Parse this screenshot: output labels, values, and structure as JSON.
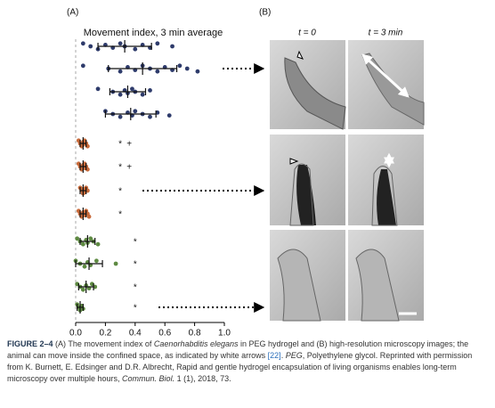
{
  "panel_a_label": "(A)",
  "panel_b_label": "(B)",
  "panel_b_columns": [
    "t = 0",
    "t = 3 min"
  ],
  "chart_data": {
    "type": "strip",
    "title": "Movement index, 3 min average",
    "xlim": [
      0,
      1
    ],
    "xticks": [
      {
        "value": 0,
        "label": "0.0"
      },
      {
        "value": 0.2,
        "label": "0.2"
      },
      {
        "value": 0.4,
        "label": "0.4"
      },
      {
        "value": 0.6,
        "label": "0.6"
      },
      {
        "value": 0.8,
        "label": "0.8"
      },
      {
        "value": 1,
        "label": "1.0"
      }
    ],
    "series": [
      {
        "color": "#2e3b6b",
        "values": [
          0.05,
          0.1,
          0.15,
          0.2,
          0.25,
          0.3,
          0.33,
          0.4,
          0.45,
          0.5,
          0.55,
          0.65
        ],
        "mean": 0.33,
        "sd": 0.18,
        "annotations": []
      },
      {
        "color": "#2e3b6b",
        "values": [
          0.05,
          0.22,
          0.3,
          0.35,
          0.4,
          0.45,
          0.5,
          0.55,
          0.6,
          0.65,
          0.7,
          0.75,
          0.82
        ],
        "mean": 0.45,
        "sd": 0.23,
        "annotations": []
      },
      {
        "color": "#2e3b6b",
        "values": [
          0.15,
          0.25,
          0.3,
          0.33,
          0.35,
          0.38,
          0.4,
          0.45,
          0.5
        ],
        "mean": 0.35,
        "sd": 0.12,
        "annotations": []
      },
      {
        "color": "#2e3b6b",
        "values": [
          0.2,
          0.25,
          0.3,
          0.35,
          0.38,
          0.4,
          0.45,
          0.5,
          0.55,
          0.63
        ],
        "mean": 0.37,
        "sd": 0.17,
        "annotations": []
      },
      {
        "color": "#c86a3a",
        "values": [
          0.02,
          0.03,
          0.04,
          0.05,
          0.05,
          0.06,
          0.07,
          0.08
        ],
        "mean": 0.05,
        "sd": 0.02,
        "annotations": [
          {
            "text": "*",
            "x": 0.3
          },
          {
            "text": "+",
            "x": 0.36
          }
        ]
      },
      {
        "color": "#c86a3a",
        "values": [
          0.02,
          0.03,
          0.04,
          0.05,
          0.06,
          0.06,
          0.07,
          0.08
        ],
        "mean": 0.05,
        "sd": 0.02,
        "annotations": [
          {
            "text": "*",
            "x": 0.3
          },
          {
            "text": "+",
            "x": 0.36
          }
        ]
      },
      {
        "color": "#c86a3a",
        "values": [
          0.03,
          0.04,
          0.05,
          0.05,
          0.06,
          0.07,
          0.08
        ],
        "mean": 0.05,
        "sd": 0.02,
        "annotations": [
          {
            "text": "*",
            "x": 0.3
          }
        ]
      },
      {
        "color": "#c86a3a",
        "values": [
          0.02,
          0.03,
          0.04,
          0.05,
          0.06,
          0.07,
          0.08,
          0.09
        ],
        "mean": 0.05,
        "sd": 0.02,
        "annotations": [
          {
            "text": "*",
            "x": 0.3
          }
        ]
      },
      {
        "color": "#5e8a42",
        "values": [
          0.01,
          0.03,
          0.05,
          0.07,
          0.08,
          0.1,
          0.12,
          0.15
        ],
        "mean": 0.08,
        "sd": 0.05,
        "annotations": [
          {
            "text": "*",
            "x": 0.4
          }
        ]
      },
      {
        "color": "#5e8a42",
        "values": [
          0.0,
          0.03,
          0.06,
          0.08,
          0.1,
          0.14,
          0.27
        ],
        "mean": 0.09,
        "sd": 0.09,
        "annotations": [
          {
            "text": "*",
            "x": 0.4
          }
        ]
      },
      {
        "color": "#5e8a42",
        "values": [
          0.01,
          0.03,
          0.05,
          0.07,
          0.09,
          0.11,
          0.13
        ],
        "mean": 0.07,
        "sd": 0.05,
        "annotations": [
          {
            "text": "*",
            "x": 0.4
          }
        ]
      },
      {
        "color": "#5e8a42",
        "values": [
          0.01,
          0.02,
          0.03,
          0.04,
          0.05
        ],
        "mean": 0.03,
        "sd": 0.02,
        "annotations": [
          {
            "text": "*",
            "x": 0.4
          }
        ]
      }
    ]
  },
  "caption": [
    "FIGURE 2–4",
    " (A) The movement index of ",
    "Caenorhabditis elegans",
    " in PEG hydrogel and (B) high-resolution microscopy images; the animal can move inside the confined space, as indicated by white arrows ",
    "[22]",
    ". ",
    "PEG",
    ", Polyethylene glycol. Reprinted with permission from K. Burnett, E. Edsinger and D.R. Albrecht, Rapid and gentle hydrogel encapsulation of living organisms enables long-term microscopy over multiple hours, ",
    "Commun. Biol.",
    " 1 (1), 2018, 73."
  ]
}
